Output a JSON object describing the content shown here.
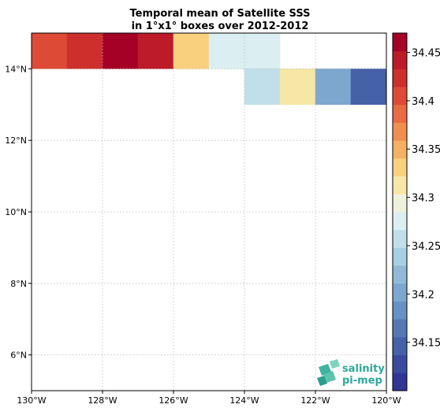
{
  "chart_data": {
    "type": "heatmap",
    "title_line1": "Temporal mean of Satellite SSS",
    "title_line2": "in 1°x1° boxes over 2012-2012",
    "xlabel": "",
    "ylabel": "",
    "xlim": [
      -130,
      -120
    ],
    "ylim": [
      5,
      15
    ],
    "grid": true,
    "x_ticks": [
      {
        "value": -130,
        "label": "130°W"
      },
      {
        "value": -128,
        "label": "128°W"
      },
      {
        "value": -126,
        "label": "126°W"
      },
      {
        "value": -124,
        "label": "124°W"
      },
      {
        "value": -122,
        "label": "122°W"
      },
      {
        "value": -120,
        "label": "120°W"
      }
    ],
    "y_ticks": [
      {
        "value": 6,
        "label": "6°N"
      },
      {
        "value": 8,
        "label": "8°N"
      },
      {
        "value": 10,
        "label": "10°N"
      },
      {
        "value": 12,
        "label": "12°N"
      },
      {
        "value": 14,
        "label": "14°N"
      }
    ],
    "cells": [
      {
        "lon": -130,
        "lat": 14,
        "value": 34.41
      },
      {
        "lon": -129,
        "lat": 14,
        "value": 34.43
      },
      {
        "lon": -128,
        "lat": 14,
        "value": 34.455
      },
      {
        "lon": -127,
        "lat": 14,
        "value": 34.445
      },
      {
        "lon": -126,
        "lat": 14,
        "value": 34.33
      },
      {
        "lon": -125,
        "lat": 14,
        "value": 34.285
      },
      {
        "lon": -124,
        "lat": 14,
        "value": 34.27
      },
      {
        "lon": -124,
        "lat": 13,
        "value": 34.25
      },
      {
        "lon": -123,
        "lat": 13,
        "value": 34.305
      },
      {
        "lon": -122,
        "lat": 13,
        "value": 34.2
      },
      {
        "lon": -121,
        "lat": 13,
        "value": 34.15
      }
    ],
    "colorbar": {
      "min": 34.1,
      "max": 34.47,
      "ticks": [
        "34.15",
        "34.2",
        "34.25",
        "34.3",
        "34.35",
        "34.4",
        "34.45"
      ],
      "colors": [
        "#313695",
        "#3a4b9f",
        "#4561a8",
        "#5578b5",
        "#6890c2",
        "#7da7cf",
        "#92bad8",
        "#a7cfe3",
        "#c1dfea",
        "#dbeef1",
        "#eef2dc",
        "#f6e7a6",
        "#f8d07e",
        "#f5b061",
        "#f08e50",
        "#e86b43",
        "#dd4b37",
        "#cd2f2c",
        "#bd1a2a",
        "#a50026"
      ]
    },
    "logo_line1": "salinity",
    "logo_line2": "pi-mep"
  }
}
